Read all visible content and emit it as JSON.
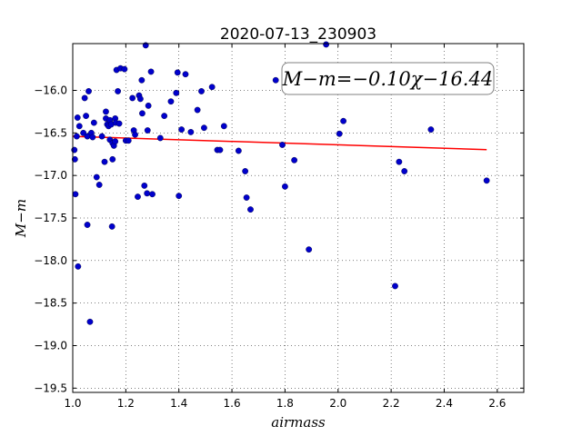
{
  "chart_data": {
    "type": "scatter",
    "title": "2020-07-13_230903",
    "xlabel": "airmass",
    "ylabel": "M−m",
    "xlim": [
      1.0,
      2.7
    ],
    "ylim": [
      -19.55,
      -15.45
    ],
    "y_inverted": true,
    "grid": true,
    "x_ticks": [
      1.0,
      1.2,
      1.4,
      1.6,
      1.8,
      2.0,
      2.2,
      2.4,
      2.6
    ],
    "x_tick_labels": [
      "1.0",
      "1.2",
      "1.4",
      "1.6",
      "1.8",
      "2.0",
      "2.2",
      "2.4",
      "2.6"
    ],
    "y_ticks": [
      -16.0,
      -16.5,
      -17.0,
      -17.5,
      -18.0,
      -18.5,
      -19.0,
      -19.5
    ],
    "y_tick_labels": [
      "−16.0",
      "−16.5",
      "−17.0",
      "−17.5",
      "−18.0",
      "−18.5",
      "−19.0",
      "−19.5"
    ],
    "annotation": "M−m=−0.10χ−16.44",
    "annotation_placement": "top-right",
    "point_color": "#0000cc",
    "line_color": "#ff0000",
    "fit": {
      "slope": -0.1,
      "intercept": -16.44,
      "x_range": [
        1.0,
        2.56
      ]
    },
    "points": [
      [
        1.006,
        -16.7
      ],
      [
        1.008,
        -16.81
      ],
      [
        1.01,
        -17.22
      ],
      [
        1.015,
        -16.54
      ],
      [
        1.018,
        -16.32
      ],
      [
        1.02,
        -18.07
      ],
      [
        1.025,
        -16.42
      ],
      [
        1.04,
        -16.5
      ],
      [
        1.045,
        -16.09
      ],
      [
        1.05,
        -16.3
      ],
      [
        1.055,
        -16.54
      ],
      [
        1.06,
        -16.01
      ],
      [
        1.055,
        -17.58
      ],
      [
        1.065,
        -18.72
      ],
      [
        1.07,
        -16.5
      ],
      [
        1.075,
        -16.55
      ],
      [
        1.08,
        -16.38
      ],
      [
        1.09,
        -17.02
      ],
      [
        1.1,
        -17.11
      ],
      [
        1.11,
        -16.54
      ],
      [
        1.12,
        -16.84
      ],
      [
        1.125,
        -16.25
      ],
      [
        1.125,
        -16.33
      ],
      [
        1.13,
        -16.4
      ],
      [
        1.135,
        -16.42
      ],
      [
        1.14,
        -16.35
      ],
      [
        1.14,
        -16.58
      ],
      [
        1.145,
        -16.4
      ],
      [
        1.15,
        -16.62
      ],
      [
        1.15,
        -16.81
      ],
      [
        1.148,
        -17.6
      ],
      [
        1.155,
        -16.65
      ],
      [
        1.16,
        -16.6
      ],
      [
        1.16,
        -16.33
      ],
      [
        1.162,
        -16.38
      ],
      [
        1.165,
        -15.76
      ],
      [
        1.17,
        -16.01
      ],
      [
        1.175,
        -16.39
      ],
      [
        1.18,
        -15.74
      ],
      [
        1.195,
        -15.75
      ],
      [
        1.2,
        -16.59
      ],
      [
        1.21,
        -16.59
      ],
      [
        1.225,
        -16.09
      ],
      [
        1.23,
        -16.47
      ],
      [
        1.235,
        -16.52
      ],
      [
        1.245,
        -17.25
      ],
      [
        1.25,
        -16.06
      ],
      [
        1.255,
        -16.1
      ],
      [
        1.26,
        -15.88
      ],
      [
        1.262,
        -16.27
      ],
      [
        1.27,
        -17.12
      ],
      [
        1.275,
        -15.47
      ],
      [
        1.28,
        -17.21
      ],
      [
        1.282,
        -16.47
      ],
      [
        1.285,
        -16.18
      ],
      [
        1.295,
        -15.78
      ],
      [
        1.3,
        -17.22
      ],
      [
        1.33,
        -16.56
      ],
      [
        1.345,
        -16.3
      ],
      [
        1.37,
        -16.13
      ],
      [
        1.39,
        -16.03
      ],
      [
        1.395,
        -15.79
      ],
      [
        1.4,
        -17.24
      ],
      [
        1.41,
        -16.46
      ],
      [
        1.425,
        -15.81
      ],
      [
        1.445,
        -16.49
      ],
      [
        1.47,
        -16.23
      ],
      [
        1.485,
        -16.01
      ],
      [
        1.495,
        -16.44
      ],
      [
        1.525,
        -15.96
      ],
      [
        1.545,
        -16.7
      ],
      [
        1.555,
        -16.7
      ],
      [
        1.57,
        -16.42
      ],
      [
        1.625,
        -16.71
      ],
      [
        1.65,
        -16.95
      ],
      [
        1.655,
        -17.26
      ],
      [
        1.67,
        -17.4
      ],
      [
        1.765,
        -15.88
      ],
      [
        1.79,
        -16.64
      ],
      [
        1.8,
        -17.13
      ],
      [
        1.835,
        -16.82
      ],
      [
        1.89,
        -17.87
      ],
      [
        1.955,
        -15.46
      ],
      [
        2.005,
        -16.51
      ],
      [
        2.02,
        -16.36
      ],
      [
        2.215,
        -18.3
      ],
      [
        2.23,
        -16.84
      ],
      [
        2.25,
        -16.95
      ],
      [
        2.35,
        -16.46
      ],
      [
        2.56,
        -17.06
      ]
    ]
  }
}
